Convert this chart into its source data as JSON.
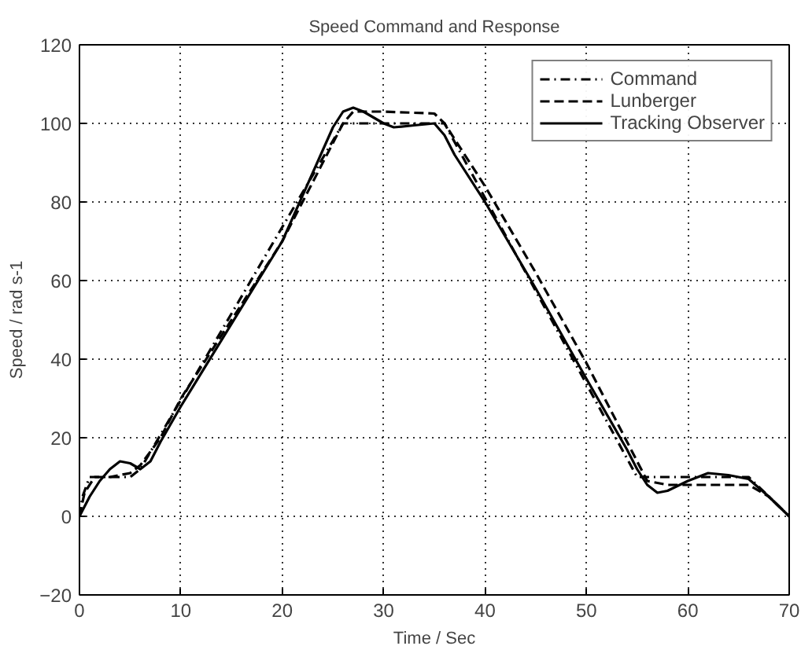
{
  "chart_data": {
    "type": "line",
    "title": "Speed Command and Response",
    "xlabel": "Time / Sec",
    "ylabel": "Speed / rad s-1",
    "xlim": [
      0,
      70
    ],
    "ylim": [
      -20,
      120
    ],
    "xticks": [
      0,
      10,
      20,
      30,
      40,
      50,
      60,
      70
    ],
    "yticks": [
      -20,
      0,
      20,
      40,
      60,
      80,
      100,
      120
    ],
    "grid": true,
    "legend": "top right",
    "marker": "none",
    "series": [
      {
        "name": "Command",
        "color": "#000000",
        "line_style": "dashdot",
        "x": [
          0,
          0.3,
          1,
          5,
          6,
          26,
          36,
          55,
          66,
          70
        ],
        "values": [
          0,
          5,
          10,
          10,
          12,
          100,
          100,
          10,
          10,
          0
        ]
      },
      {
        "name": "Lunberger",
        "color": "#000000",
        "line_style": "dashed",
        "x": [
          0,
          0.5,
          1.5,
          3,
          5,
          6,
          8,
          10,
          20,
          26,
          27,
          30,
          35,
          36,
          40,
          45,
          50,
          55,
          56,
          58,
          62,
          66,
          68,
          70
        ],
        "values": [
          0,
          6,
          10,
          10,
          11,
          13,
          20,
          30,
          70,
          100,
          103,
          103,
          102.5,
          100,
          84,
          62,
          39,
          14,
          9,
          8,
          8,
          8,
          5,
          0
        ]
      },
      {
        "name": "Tracking Observer",
        "color": "#000000",
        "line_style": "solid",
        "x": [
          0,
          1,
          2,
          3,
          4,
          5,
          6,
          7,
          8,
          10,
          20,
          25,
          26,
          27,
          28,
          30,
          31,
          33,
          35,
          36,
          37,
          40,
          45,
          50,
          54,
          55,
          56,
          57,
          58,
          60,
          62,
          64,
          66,
          68,
          70
        ],
        "values": [
          0,
          5,
          9,
          12,
          14,
          13.5,
          12,
          14,
          19,
          28,
          70,
          99,
          103,
          104,
          103,
          100,
          99,
          99.5,
          100,
          97,
          92,
          80,
          58,
          35,
          17,
          12,
          8,
          6,
          6.5,
          9,
          11,
          10.5,
          9.5,
          5,
          0
        ]
      }
    ]
  }
}
